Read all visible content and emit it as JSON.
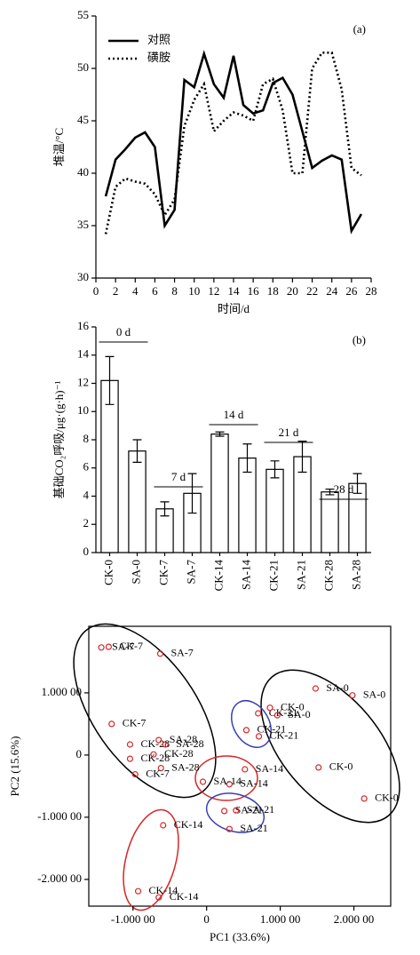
{
  "chart_data": [
    {
      "type": "line",
      "annotation": "(a)",
      "x_label": "时间/d",
      "y_label": "堆温/°C",
      "x": [
        1,
        2,
        3,
        4,
        5,
        6,
        7,
        8,
        9,
        10,
        11,
        12,
        13,
        14,
        15,
        16,
        17,
        18,
        19,
        20,
        21,
        22,
        23,
        24,
        25,
        26,
        27
      ],
      "series": [
        {
          "name": "对照",
          "color": "#000000",
          "line_style": "solid",
          "values": [
            37.8,
            41.3,
            42.3,
            43.4,
            43.9,
            42.5,
            35.0,
            36.5,
            48.9,
            48.2,
            51.4,
            48.5,
            47.2,
            51.2,
            46.5,
            45.7,
            46.0,
            48.6,
            49.1,
            47.5,
            44.0,
            40.5,
            41.2,
            41.7,
            41.3,
            34.5,
            36.1
          ]
        },
        {
          "name": "磺胺",
          "color": "#000000",
          "line_style": "dotted",
          "values": [
            34.2,
            38.7,
            39.5,
            39.2,
            39.0,
            38.0,
            36.0,
            37.5,
            44.5,
            47.0,
            48.5,
            44.0,
            45.0,
            45.8,
            45.5,
            45.0,
            48.5,
            49.0,
            46.0,
            40.0,
            40.0,
            50.0,
            51.5,
            51.5,
            48.0,
            40.5,
            39.8
          ]
        }
      ],
      "xlim": [
        0,
        28
      ],
      "xticks": [
        0,
        2,
        4,
        6,
        8,
        10,
        12,
        14,
        16,
        18,
        20,
        22,
        24,
        26,
        28
      ],
      "ylim": [
        30,
        55
      ],
      "yticks": [
        30,
        35,
        40,
        45,
        50,
        55
      ],
      "legend": "top-left"
    },
    {
      "type": "bar",
      "annotation": "(b)",
      "y_label": "基础CO₂呼吸/μg·(g·h)⁻¹",
      "categories": [
        "CK-0",
        "SA-0",
        "CK-7",
        "SA-7",
        "CK-14",
        "SA-14",
        "CK-21",
        "SA-21",
        "CK-28",
        "SA-28"
      ],
      "values": [
        12.2,
        7.2,
        3.1,
        4.2,
        8.4,
        6.7,
        5.9,
        6.8,
        4.3,
        4.9
      ],
      "errors": [
        1.7,
        0.8,
        0.5,
        1.4,
        0.15,
        1.0,
        0.6,
        1.1,
        0.2,
        0.7
      ],
      "group_labels": [
        "0 d",
        "7 d",
        "14 d",
        "21 d",
        "28 d"
      ],
      "color": "#ffffff",
      "ylim": [
        0,
        16
      ],
      "yticks": [
        0,
        2,
        4,
        6,
        8,
        10,
        12,
        14,
        16
      ]
    },
    {
      "type": "scatter",
      "x_label": "PC1 (33.6%)",
      "y_label": "PC2 (15.6%)",
      "color": "#d62728",
      "x": [
        -1.43,
        -1.33,
        -0.63,
        -1.29,
        -1.04,
        -0.65,
        -0.56,
        -0.72,
        -1.04,
        -0.62,
        -0.97,
        0.7,
        0.86,
        0.96,
        0.54,
        0.71,
        1.48,
        1.98,
        1.52,
        2.14,
        0.52,
        0.31,
        -0.05,
        0.24,
        0.4,
        0.31,
        -0.59,
        -0.93,
        -0.65
      ],
      "values": [
        1.73,
        1.74,
        1.63,
        0.5,
        0.17,
        0.24,
        0.17,
        0.01,
        -0.06,
        -0.21,
        -0.31,
        0.67,
        0.76,
        0.64,
        0.4,
        0.3,
        1.07,
        0.96,
        -0.2,
        -0.7,
        -0.23,
        -0.47,
        -0.43,
        -0.9,
        -0.89,
        -1.19,
        -1.13,
        -2.19,
        -2.29
      ],
      "point_labels": [
        "SA-7",
        "CK-7",
        "SA-7",
        "CK-7",
        "CK-28",
        "SA-28",
        "SA-28",
        "CK-28",
        "CK-28",
        "SA-28",
        "CK-7",
        "CK-21",
        "CK-0",
        "SA-0",
        "CK-21",
        "CK-21",
        "SA-0",
        "SA-0",
        "CK-0",
        "CK-0",
        "SA-14",
        "SA-14",
        "SA-14",
        "SA-21",
        "SA-21",
        "SA-21",
        "CK-14",
        "CK-14",
        "CK-14"
      ],
      "xlim": [
        -1.6,
        2.5
      ],
      "xticks": [
        {
          "value": -1,
          "label": "-1.000 00"
        },
        0,
        {
          "value": 1,
          "label": "1.000 00"
        },
        {
          "value": 2,
          "label": "2.000 00"
        }
      ],
      "ylim": [
        -2.43,
        2.07
      ],
      "yticks": [
        {
          "value": -2,
          "label": "-2.000 00"
        },
        {
          "value": -1,
          "label": "-1.000 00"
        },
        0,
        {
          "value": 1,
          "label": "1.000 00"
        }
      ]
    }
  ]
}
